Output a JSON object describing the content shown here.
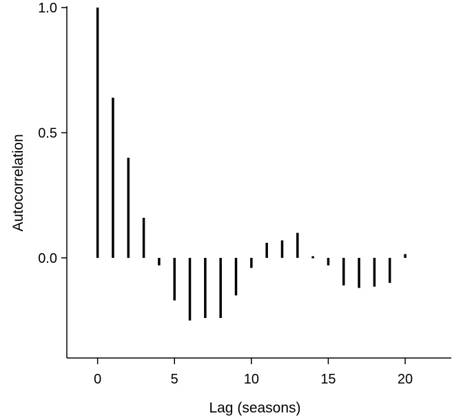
{
  "chart_data": {
    "type": "bar",
    "xlabel": "Lag (seasons)",
    "ylabel": "Autocorrelation",
    "x": [
      0,
      1,
      2,
      3,
      4,
      5,
      6,
      7,
      8,
      9,
      10,
      11,
      12,
      13,
      14,
      15,
      16,
      17,
      18,
      19,
      20
    ],
    "values": [
      1.0,
      0.64,
      0.4,
      0.16,
      -0.03,
      -0.17,
      -0.25,
      -0.24,
      -0.24,
      -0.15,
      -0.04,
      0.06,
      0.07,
      0.1,
      0.005,
      -0.03,
      -0.11,
      -0.12,
      -0.115,
      -0.1,
      0.015
    ],
    "xlim": [
      -2,
      23
    ],
    "ylim": [
      -0.4,
      1.0
    ],
    "xticks": [
      0,
      5,
      10,
      15,
      20
    ],
    "xtick_labels": [
      "0",
      "5",
      "10",
      "15",
      "20"
    ],
    "yticks": [
      0.0,
      0.5,
      1.0
    ],
    "ytick_labels": [
      "0.0",
      "0.5",
      "1.0"
    ],
    "grid": false,
    "colors": {
      "bar": "#000000",
      "axis": "#000000"
    }
  }
}
